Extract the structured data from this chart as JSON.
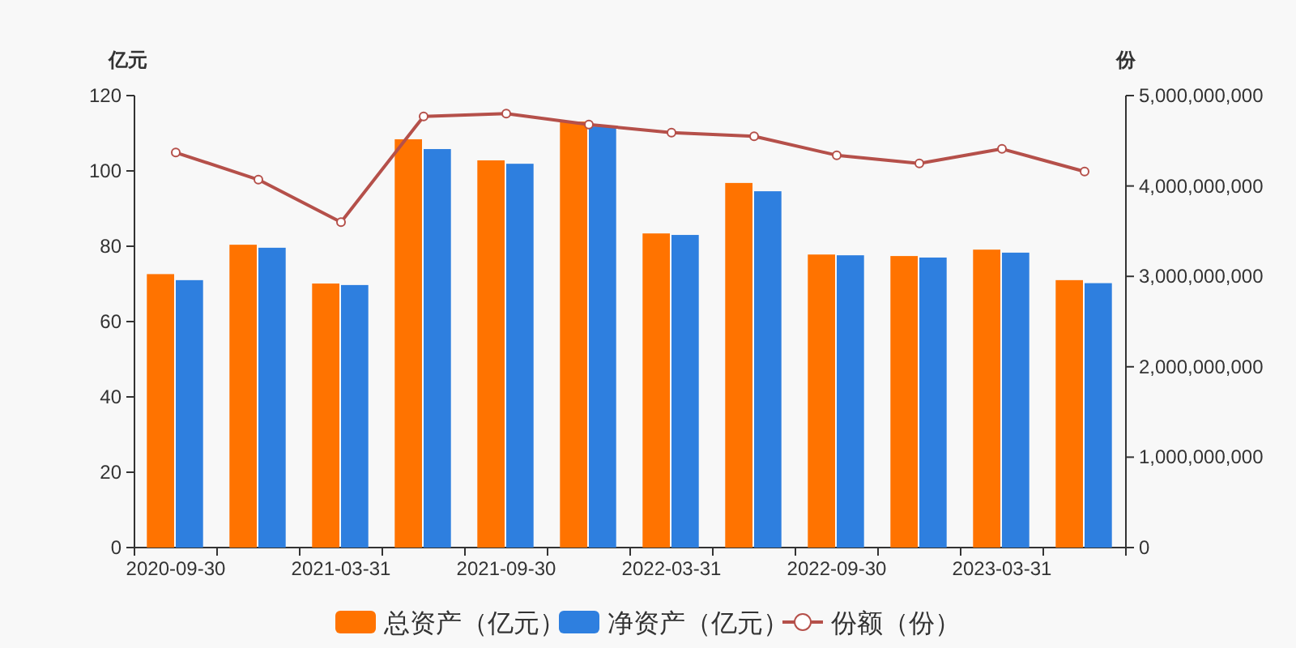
{
  "chart_data": {
    "type": "bar",
    "ylabel": "亿元",
    "y2label": "份",
    "categories": [
      "2020-09-30",
      null,
      "2021-03-31",
      null,
      "2021-09-30",
      null,
      "2022-03-31",
      null,
      "2022-09-30",
      null,
      "2023-03-31",
      null
    ],
    "series": [
      {
        "name": "总资产（亿元）",
        "color": "#ff7300",
        "values": [
          72.6,
          80.4,
          70.1,
          108.4,
          102.8,
          113.1,
          83.4,
          96.8,
          77.8,
          77.4,
          79.1,
          71.0
        ]
      },
      {
        "name": "净资产（亿元）",
        "color": "#2e7fdf",
        "values": [
          71.0,
          79.6,
          69.7,
          105.8,
          101.9,
          111.8,
          83.0,
          94.6,
          77.6,
          77.0,
          78.3,
          70.2
        ]
      },
      {
        "name": "份额（份）",
        "type": "line",
        "axis": "y2",
        "color": "#b5504a",
        "marker": "circle",
        "values": [
          4370000000,
          4070000000,
          3600000000,
          4770000000,
          4800000000,
          4680000000,
          4590000000,
          4550000000,
          4340000000,
          4250000000,
          4410000000,
          4160000000
        ]
      }
    ],
    "ylim": [
      0,
      120
    ],
    "yticks": [
      0,
      20,
      40,
      60,
      80,
      100,
      120
    ],
    "y2lim": [
      0,
      5000000000
    ],
    "y2ticks": [
      {
        "value": 0,
        "label": "0"
      },
      {
        "value": 1000000000,
        "label": "1,000,000,000"
      },
      {
        "value": 2000000000,
        "label": "2,000,000,000"
      },
      {
        "value": 3000000000,
        "label": "3,000,000,000"
      },
      {
        "value": 4000000000,
        "label": "4,000,000,000"
      },
      {
        "value": 5000000000,
        "label": "5,000,000,000"
      }
    ],
    "legend": "bottom"
  }
}
